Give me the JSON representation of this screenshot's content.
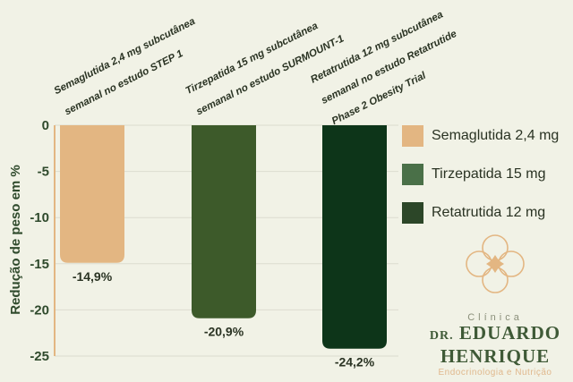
{
  "chart_data": {
    "type": "bar",
    "ylabel": "Redução de peso em %",
    "ylim": [
      -25,
      0
    ],
    "yticks": [
      "0",
      "-5",
      "-10",
      "-15",
      "-20",
      "-25"
    ],
    "grid": true,
    "legend_position": "right",
    "series": [
      {
        "name": "Semaglutida 2,4 mg",
        "value": -14.9,
        "value_label": "-14,9%",
        "color": "#e3b682",
        "header_lines": [
          "Semaglutida 2,4 mg subcutânea",
          "semanal no estudo STEP 1"
        ]
      },
      {
        "name": "Tirzepatida 15 mg",
        "value": -20.9,
        "value_label": "-20,9%",
        "color": "#3d5a2a",
        "header_lines": [
          "Tirzepatida 15 mg subcutânea",
          "semanal no estudo SURMOUNT-1"
        ]
      },
      {
        "name": "Retatrutida 12 mg",
        "value": -24.2,
        "value_label": "-24,2%",
        "color": "#0d3519",
        "header_lines": [
          "Retatrutida 12  mg subcutânea",
          "semanal no estudo Retatrutide",
          "Phase 2 Obesity Trial"
        ]
      }
    ],
    "legend_colors": [
      "#e3b682",
      "#4a7048",
      "#2c4628"
    ]
  },
  "branding": {
    "small": "Clínica",
    "name_prefix": "DR.",
    "name_line1": "EDUARDO",
    "name_line2": "HENRIQUE",
    "subtitle": "Endocrinologia e Nutrição",
    "accent_color": "#e3b682",
    "primary_color": "#3f5a37"
  }
}
